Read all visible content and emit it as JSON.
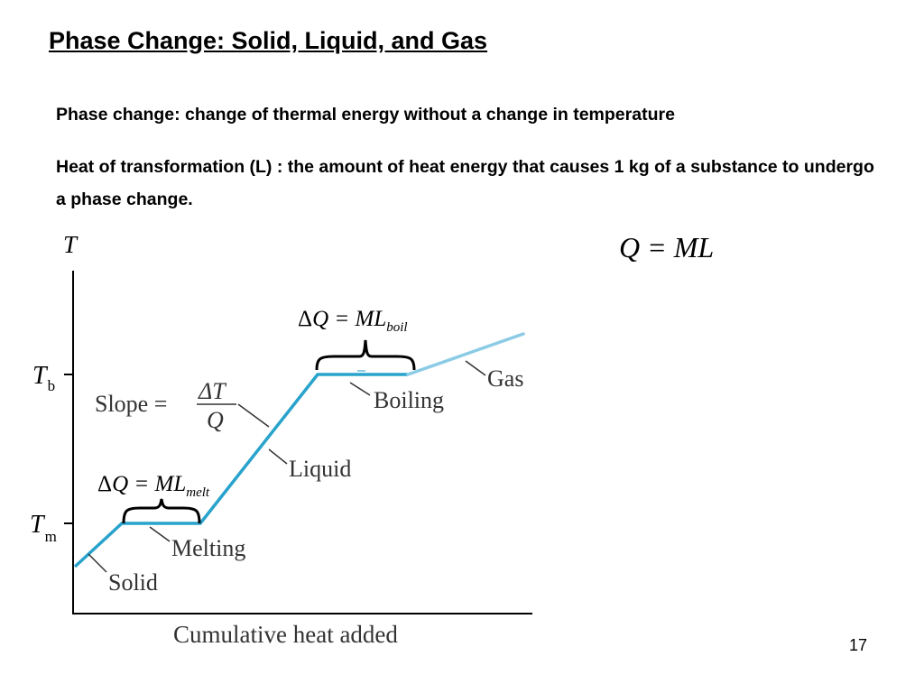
{
  "slide": {
    "title": "Phase Change: Solid, Liquid, and Gas",
    "para1": "Phase change: change of thermal energy without a change in temperature",
    "para2": "Heat of transformation (L) : the amount of heat energy that causes 1 kg of a substance to undergo a phase change.",
    "equation": "Q = ML",
    "page_number": "17"
  },
  "graph": {
    "y_axis_label": "T",
    "x_axis_label": "Cumulative heat added",
    "tick_boiling_main": "T",
    "tick_boiling_sub": "b",
    "tick_melting_main": "T",
    "tick_melting_sub": "m",
    "slope": {
      "prefix": "Slope =",
      "numerator": "ΔT",
      "denominator": "Q"
    },
    "labels": {
      "solid": "Solid",
      "melting": "Melting",
      "liquid": "Liquid",
      "boiling": "Boiling",
      "gas": "Gas"
    },
    "dq_melt": {
      "delta": "Δ",
      "main": "Q = ML",
      "sub": "melt"
    },
    "dq_boil": {
      "delta": "Δ",
      "main": "Q = ML",
      "sub": "boil"
    },
    "colors": {
      "curve": "#29a3cc",
      "gas_curve": "#8ccbe6",
      "axis": "#000000",
      "label_text": "#333333"
    }
  }
}
